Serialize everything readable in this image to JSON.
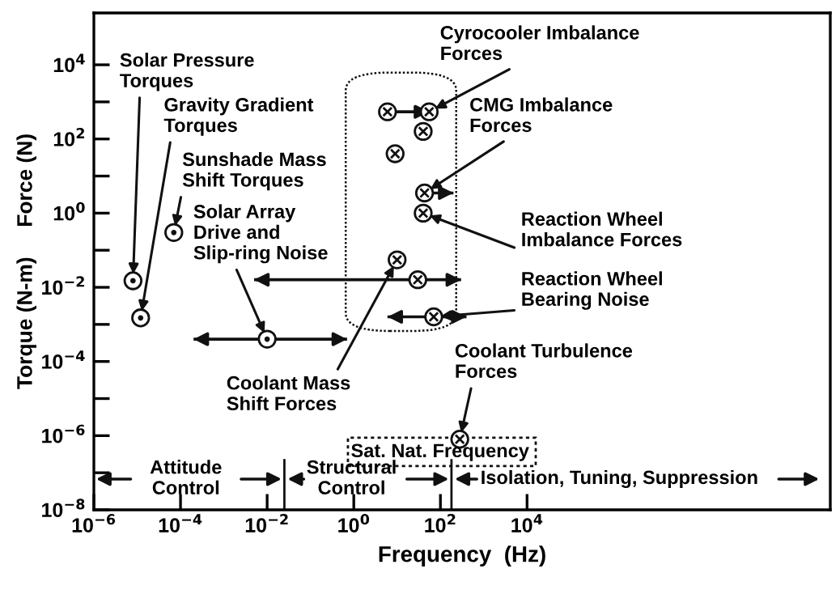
{
  "chart_data": {
    "type": "scatter",
    "xlabel": "Frequency  (Hz)",
    "ylabel": "Torque (N-m)     Force (N)",
    "log": "xy",
    "xlim": [
      1e-06,
      100000000000.0
    ],
    "ylim": [
      1e-08,
      250000
    ],
    "xticks": [
      {
        "value": 1e-06,
        "label": "10$^{−6}$"
      },
      {
        "value": 0.0001,
        "label": "10$^{−4}$"
      },
      {
        "value": 0.01,
        "label": "10$^{−2}$"
      },
      {
        "value": 1,
        "label": "10$^{0}$"
      },
      {
        "value": 100,
        "label": "10$^{2}$"
      },
      {
        "value": 10000,
        "label": "10$^{4}$"
      }
    ],
    "yticks": [
      {
        "value": 1e-08,
        "label": "10$^{−8}$"
      },
      {
        "value": 1e-07,
        "label": null
      },
      {
        "value": 1e-06,
        "label": "10$^{−6}$"
      },
      {
        "value": 1e-05,
        "label": null
      },
      {
        "value": 0.0001,
        "label": "10$^{−4}$"
      },
      {
        "value": 0.001,
        "label": null
      },
      {
        "value": 0.01,
        "label": "10$^{−2}$"
      },
      {
        "value": 0.1,
        "label": null
      },
      {
        "value": 1,
        "label": "10$^{0}$"
      },
      {
        "value": 10,
        "label": null
      },
      {
        "value": 100,
        "label": "10$^{2}$"
      },
      {
        "value": 1000,
        "label": null
      },
      {
        "value": 10000,
        "label": "10$^{4}$"
      }
    ],
    "grid": false,
    "series": [
      {
        "color": "#111111",
        "marker": "circle",
        "x": [
          8e-06,
          1.2e-05,
          7e-05,
          0.01
        ],
        "values": [
          0.015,
          0.0015,
          0.3,
          0.0004
        ],
        "xerrors": [
          null,
          null,
          null,
          [
            0.0002,
            0.7
          ]
        ]
      },
      {
        "color": "#111111",
        "marker": "circle",
        "x": [
          6,
          55,
          40,
          9,
          43,
          40,
          10,
          30,
          70,
          280
        ],
        "values": [
          540,
          540,
          160,
          40,
          3.5,
          1,
          0.055,
          0.016,
          0.0016,
          8e-07
        ],
        "xerrors": [
          [
            6,
            55
          ],
          null,
          null,
          null,
          [
            43,
            200
          ],
          null,
          null,
          [
            0.005,
            300
          ],
          [
            6,
            400
          ],
          null
        ]
      }
    ],
    "ref_lines": [
      {
        "axis": "x",
        "value": 0.025,
        "color": "#111111"
      },
      {
        "axis": "x",
        "value": 180,
        "color": "#111111"
      }
    ],
    "annotations": [
      {
        "text": "Solar Pressure\nTorques",
        "x": 8e-06,
        "y": 0.015
      },
      {
        "text": "Gravity Gradient\nTorques",
        "x": 1.2e-05,
        "y": 0.0015
      },
      {
        "text": "Sunshade Mass\nShift Torques",
        "x": 7e-05,
        "y": 0.3
      },
      {
        "text": "Solar Array\nDrive and\nSlip-ring Noise",
        "x": 0.01,
        "y": 0.0004
      },
      {
        "text": "Cyrocooler Imbalance\nForces",
        "x": 55,
        "y": 540
      },
      {
        "text": "CMG Imbalance\nForces",
        "x": 43,
        "y": 3.5
      },
      {
        "text": "Reaction Wheel\nImbalance Forces",
        "x": 40,
        "y": 1
      },
      {
        "text": "Reaction Wheel\nBearing Noise",
        "x": 70,
        "y": 0.0016
      },
      {
        "text": "Coolant Mass\nShift Forces",
        "x": 10,
        "y": 0.055
      },
      {
        "text": "Coolant Turbulence\nForces",
        "x": 280,
        "y": 8e-07
      },
      "Attitude\nControl",
      "Structural\nControl",
      "Isolation, Tuning, Suppression",
      "Sat. Nat. Frequency"
    ]
  }
}
